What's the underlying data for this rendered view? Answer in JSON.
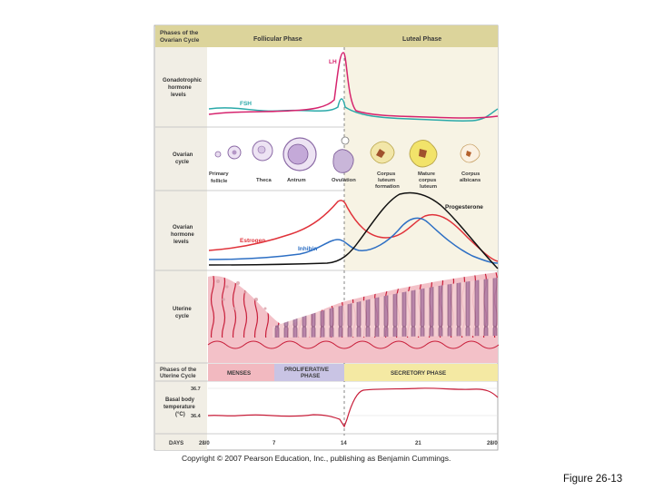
{
  "header": {
    "phases_label": [
      "Phases of the",
      "Ovarian Cycle"
    ],
    "follicular": "Follicular Phase",
    "luteal": "Luteal Phase"
  },
  "rows": {
    "gonadotrophic": [
      "Gonadotrophic",
      "hormone",
      "levels"
    ],
    "ovarian_cycle": [
      "Ovarian",
      "cycle"
    ],
    "ovarian_hormone": [
      "Ovarian",
      "hormone",
      "levels"
    ],
    "uterine_cycle": [
      "Uterine",
      "cycle"
    ],
    "uterine_phases": [
      "Phases of the",
      "Uterine Cycle"
    ],
    "bbt": [
      "Basal body",
      "temperature",
      "(°C)"
    ]
  },
  "hormone_labels": {
    "lh": "LH",
    "fsh": "FSH",
    "progesterone": "Progesterone",
    "estrogen": "Estrogen",
    "inhibin": "Inhibin"
  },
  "ovarian_labels": [
    [
      "Primary",
      "follicle"
    ],
    [
      "Theca"
    ],
    [
      "Antrum"
    ],
    [
      "Ovulation"
    ],
    [
      "Corpus",
      "luteum",
      "formation"
    ],
    [
      "Mature",
      "corpus",
      "luteum"
    ],
    [
      "Corpus",
      "albicans"
    ]
  ],
  "uterine_phases": {
    "menses": "MENSES",
    "proliferative": [
      "PROLIFERATIVE",
      "PHASE"
    ],
    "secretory": "SECRETORY PHASE"
  },
  "temperature": {
    "high": "36.7",
    "low": "36.4"
  },
  "days": {
    "label": "DAYS",
    "ticks": [
      "28/0",
      "7",
      "14",
      "21",
      "28/0"
    ]
  },
  "copyright": "Copyright © 2007 Pearson Education, Inc., publishing as Benjamin Cummings.",
  "caption": "Figure 26-13",
  "colors": {
    "lh": "#d6246e",
    "fsh": "#2aa9a9",
    "estrogen": "#e0323a",
    "progesterone": "#111111",
    "inhibin": "#2d6fc4",
    "header": "#dcd49b",
    "menses": "#f2b9c0",
    "proliferative": "#c9c4e4",
    "secretory": "#f4e9a3"
  }
}
